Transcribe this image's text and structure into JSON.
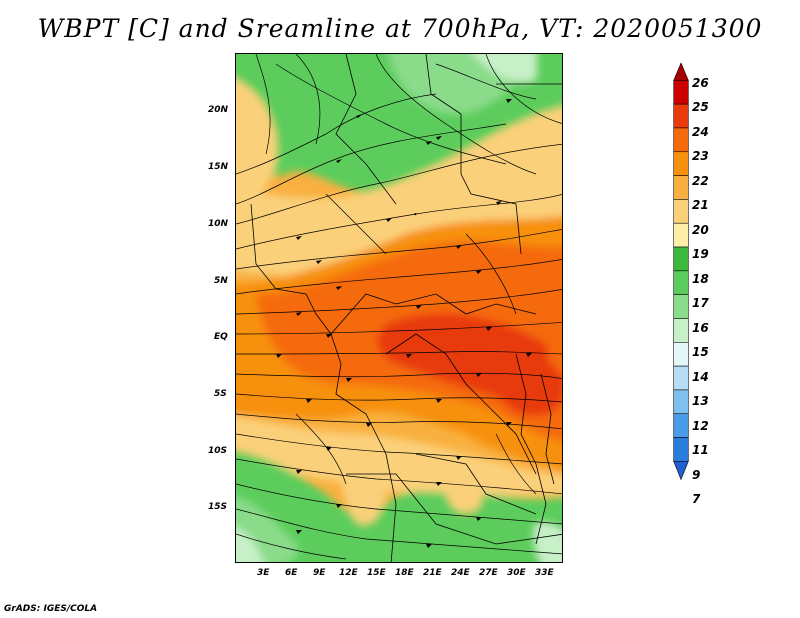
{
  "title": "WBPT [C] and Sreamline at 700hPa, VT: 2020051300",
  "credit": "GrADS: IGES/COLA",
  "map": {
    "lat_labels": [
      "20N",
      "15N",
      "10N",
      "5N",
      "EQ",
      "5S",
      "10S",
      "15S"
    ],
    "lon_labels": [
      "3E",
      "6E",
      "9E",
      "12E",
      "15E",
      "18E",
      "21E",
      "24E",
      "27E",
      "30E",
      "33E"
    ],
    "field": "wet bulb potential temperature",
    "overlay": "streamlines"
  },
  "colorbar": {
    "levels": [
      "26",
      "25",
      "24",
      "23",
      "22",
      "21",
      "20",
      "19",
      "18",
      "17",
      "16",
      "15",
      "14",
      "13",
      "12",
      "11",
      "9",
      "7"
    ],
    "colors": [
      "#a50000",
      "#cd0000",
      "#e83a0a",
      "#f56a0a",
      "#f7900f",
      "#f9b040",
      "#fbd07a",
      "#fdeea8",
      "#3cb83c",
      "#5ccd5c",
      "#8adc8a",
      "#c8f0c8",
      "#e4f6f8",
      "#b6dcf6",
      "#7ec0f0",
      "#4a9ce8",
      "#2b7ddc",
      "#1f5fcf"
    ]
  }
}
